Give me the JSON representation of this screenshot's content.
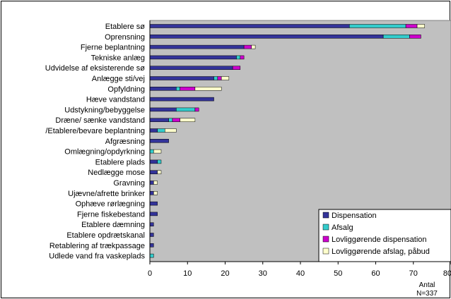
{
  "colors": {
    "frame_border": "#000000",
    "plot_background": "#c0c0c0",
    "dispensation": "#333399",
    "afslag": "#33cccc",
    "lovliggorende_dispensation": "#cc00cc",
    "lovliggorende_afslag": "#ffffcc"
  },
  "chart_data": {
    "type": "bar",
    "orientation": "horizontal",
    "stacked": true,
    "title": "",
    "xlabel": "Antal",
    "note": "N=337",
    "xlim": [
      0,
      80
    ],
    "xticks": [
      0,
      10,
      20,
      30,
      40,
      50,
      60,
      70,
      80
    ],
    "grid": false,
    "legend_position": "bottom-right",
    "categories": [
      "Etablere sø",
      "Oprensning",
      "Fjerne beplantning",
      "Tekniske anlæg",
      "Udvidelse af eksisterende sø",
      "Anlægge sti/vej",
      "Opfyldning",
      "Hæve vandstand",
      "Udstykning/bebyggelse",
      "Dræne/ sænke vandstand",
      "/Etablere/bevare beplantning",
      "Afgræsning",
      "Omlægning/opdyrkning",
      "Etablere plads",
      "Nedlægge mose",
      "Gravning",
      "Ujævne/afrette brinker",
      "Ophæve rørlægning",
      "Fjerne fiskebestand",
      "Etablere dæmning",
      "Etablere opdrætskanal",
      "Retablering af trækpassage",
      "Udlede vand fra vaskeplads"
    ],
    "series": [
      {
        "name": "Dispensation",
        "color": "#333399",
        "values": [
          53,
          62,
          25,
          23,
          22,
          17,
          7,
          17,
          7,
          5,
          2,
          5,
          0,
          2,
          2,
          1,
          1,
          2,
          2,
          1,
          1,
          1,
          0
        ]
      },
      {
        "name": "Afsalg",
        "color": "#33cccc",
        "values": [
          15,
          7,
          0,
          1,
          0,
          1,
          1,
          0,
          5,
          1,
          2,
          0,
          1,
          1,
          0,
          0,
          0,
          0,
          0,
          0,
          0,
          0,
          1
        ]
      },
      {
        "name": "Lovliggørende dispensation",
        "color": "#cc00cc",
        "values": [
          3,
          3,
          2,
          1,
          2,
          1,
          4,
          0,
          1,
          2,
          0,
          0,
          0,
          0,
          0,
          0,
          0,
          0,
          0,
          0,
          0,
          0,
          0
        ]
      },
      {
        "name": "Lovliggørende afslag, påbud",
        "color": "#ffffcc",
        "values": [
          2,
          0,
          1,
          0,
          0,
          2,
          7,
          0,
          0,
          4,
          3,
          0,
          2,
          0,
          1,
          1,
          1,
          0,
          0,
          0,
          0,
          0,
          0
        ]
      }
    ]
  }
}
